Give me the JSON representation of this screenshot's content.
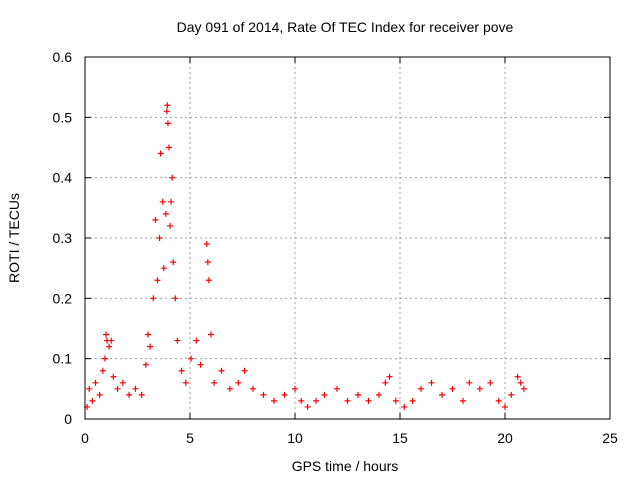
{
  "chart_data": {
    "type": "scatter",
    "title": "Day 091 of 2014, Rate Of TEC Index for receiver pove",
    "xlabel": "GPS time / hours",
    "ylabel": "ROTI / TECUs",
    "xlim": [
      0,
      25
    ],
    "ylim": [
      0,
      0.6
    ],
    "xticks": [
      "0",
      "5",
      "10",
      "15",
      "20",
      "25"
    ],
    "yticks": [
      "0",
      "0.1",
      "0.2",
      "0.3",
      "0.4",
      "0.5",
      "0.6"
    ],
    "grid": true,
    "marker": "+",
    "series": [
      {
        "color": "#ff0000",
        "points": [
          [
            0.1,
            0.02
          ],
          [
            0.2,
            0.05
          ],
          [
            0.35,
            0.03
          ],
          [
            0.5,
            0.06
          ],
          [
            0.7,
            0.04
          ],
          [
            0.85,
            0.08
          ],
          [
            0.95,
            0.1
          ],
          [
            1.0,
            0.14
          ],
          [
            1.05,
            0.13
          ],
          [
            1.15,
            0.12
          ],
          [
            1.25,
            0.13
          ],
          [
            1.35,
            0.07
          ],
          [
            1.55,
            0.05
          ],
          [
            1.8,
            0.06
          ],
          [
            2.1,
            0.04
          ],
          [
            2.4,
            0.05
          ],
          [
            2.7,
            0.04
          ],
          [
            2.9,
            0.09
          ],
          [
            3.0,
            0.14
          ],
          [
            3.1,
            0.12
          ],
          [
            3.25,
            0.2
          ],
          [
            3.35,
            0.33
          ],
          [
            3.45,
            0.23
          ],
          [
            3.55,
            0.3
          ],
          [
            3.6,
            0.44
          ],
          [
            3.7,
            0.36
          ],
          [
            3.75,
            0.25
          ],
          [
            3.85,
            0.34
          ],
          [
            3.9,
            0.51
          ],
          [
            3.92,
            0.52
          ],
          [
            3.95,
            0.49
          ],
          [
            4.0,
            0.45
          ],
          [
            4.05,
            0.32
          ],
          [
            4.1,
            0.36
          ],
          [
            4.15,
            0.4
          ],
          [
            4.2,
            0.26
          ],
          [
            4.3,
            0.2
          ],
          [
            4.4,
            0.13
          ],
          [
            4.6,
            0.08
          ],
          [
            4.8,
            0.06
          ],
          [
            5.05,
            0.1
          ],
          [
            5.3,
            0.13
          ],
          [
            5.5,
            0.09
          ],
          [
            5.8,
            0.29
          ],
          [
            5.85,
            0.26
          ],
          [
            5.9,
            0.23
          ],
          [
            6.0,
            0.14
          ],
          [
            6.15,
            0.06
          ],
          [
            6.5,
            0.08
          ],
          [
            6.9,
            0.05
          ],
          [
            7.3,
            0.06
          ],
          [
            7.6,
            0.08
          ],
          [
            8.0,
            0.05
          ],
          [
            8.5,
            0.04
          ],
          [
            9.0,
            0.03
          ],
          [
            9.5,
            0.04
          ],
          [
            10.0,
            0.05
          ],
          [
            10.3,
            0.03
          ],
          [
            10.6,
            0.02
          ],
          [
            11.0,
            0.03
          ],
          [
            11.4,
            0.04
          ],
          [
            12.0,
            0.05
          ],
          [
            12.5,
            0.03
          ],
          [
            13.0,
            0.04
          ],
          [
            13.5,
            0.03
          ],
          [
            14.0,
            0.04
          ],
          [
            14.3,
            0.06
          ],
          [
            14.5,
            0.07
          ],
          [
            14.8,
            0.03
          ],
          [
            15.2,
            0.02
          ],
          [
            15.6,
            0.03
          ],
          [
            16.0,
            0.05
          ],
          [
            16.5,
            0.06
          ],
          [
            17.0,
            0.04
          ],
          [
            17.5,
            0.05
          ],
          [
            18.0,
            0.03
          ],
          [
            18.3,
            0.06
          ],
          [
            18.8,
            0.05
          ],
          [
            19.3,
            0.06
          ],
          [
            19.7,
            0.03
          ],
          [
            20.0,
            0.02
          ],
          [
            20.3,
            0.04
          ],
          [
            20.6,
            0.07
          ],
          [
            20.75,
            0.06
          ],
          [
            20.9,
            0.05
          ]
        ]
      }
    ]
  }
}
